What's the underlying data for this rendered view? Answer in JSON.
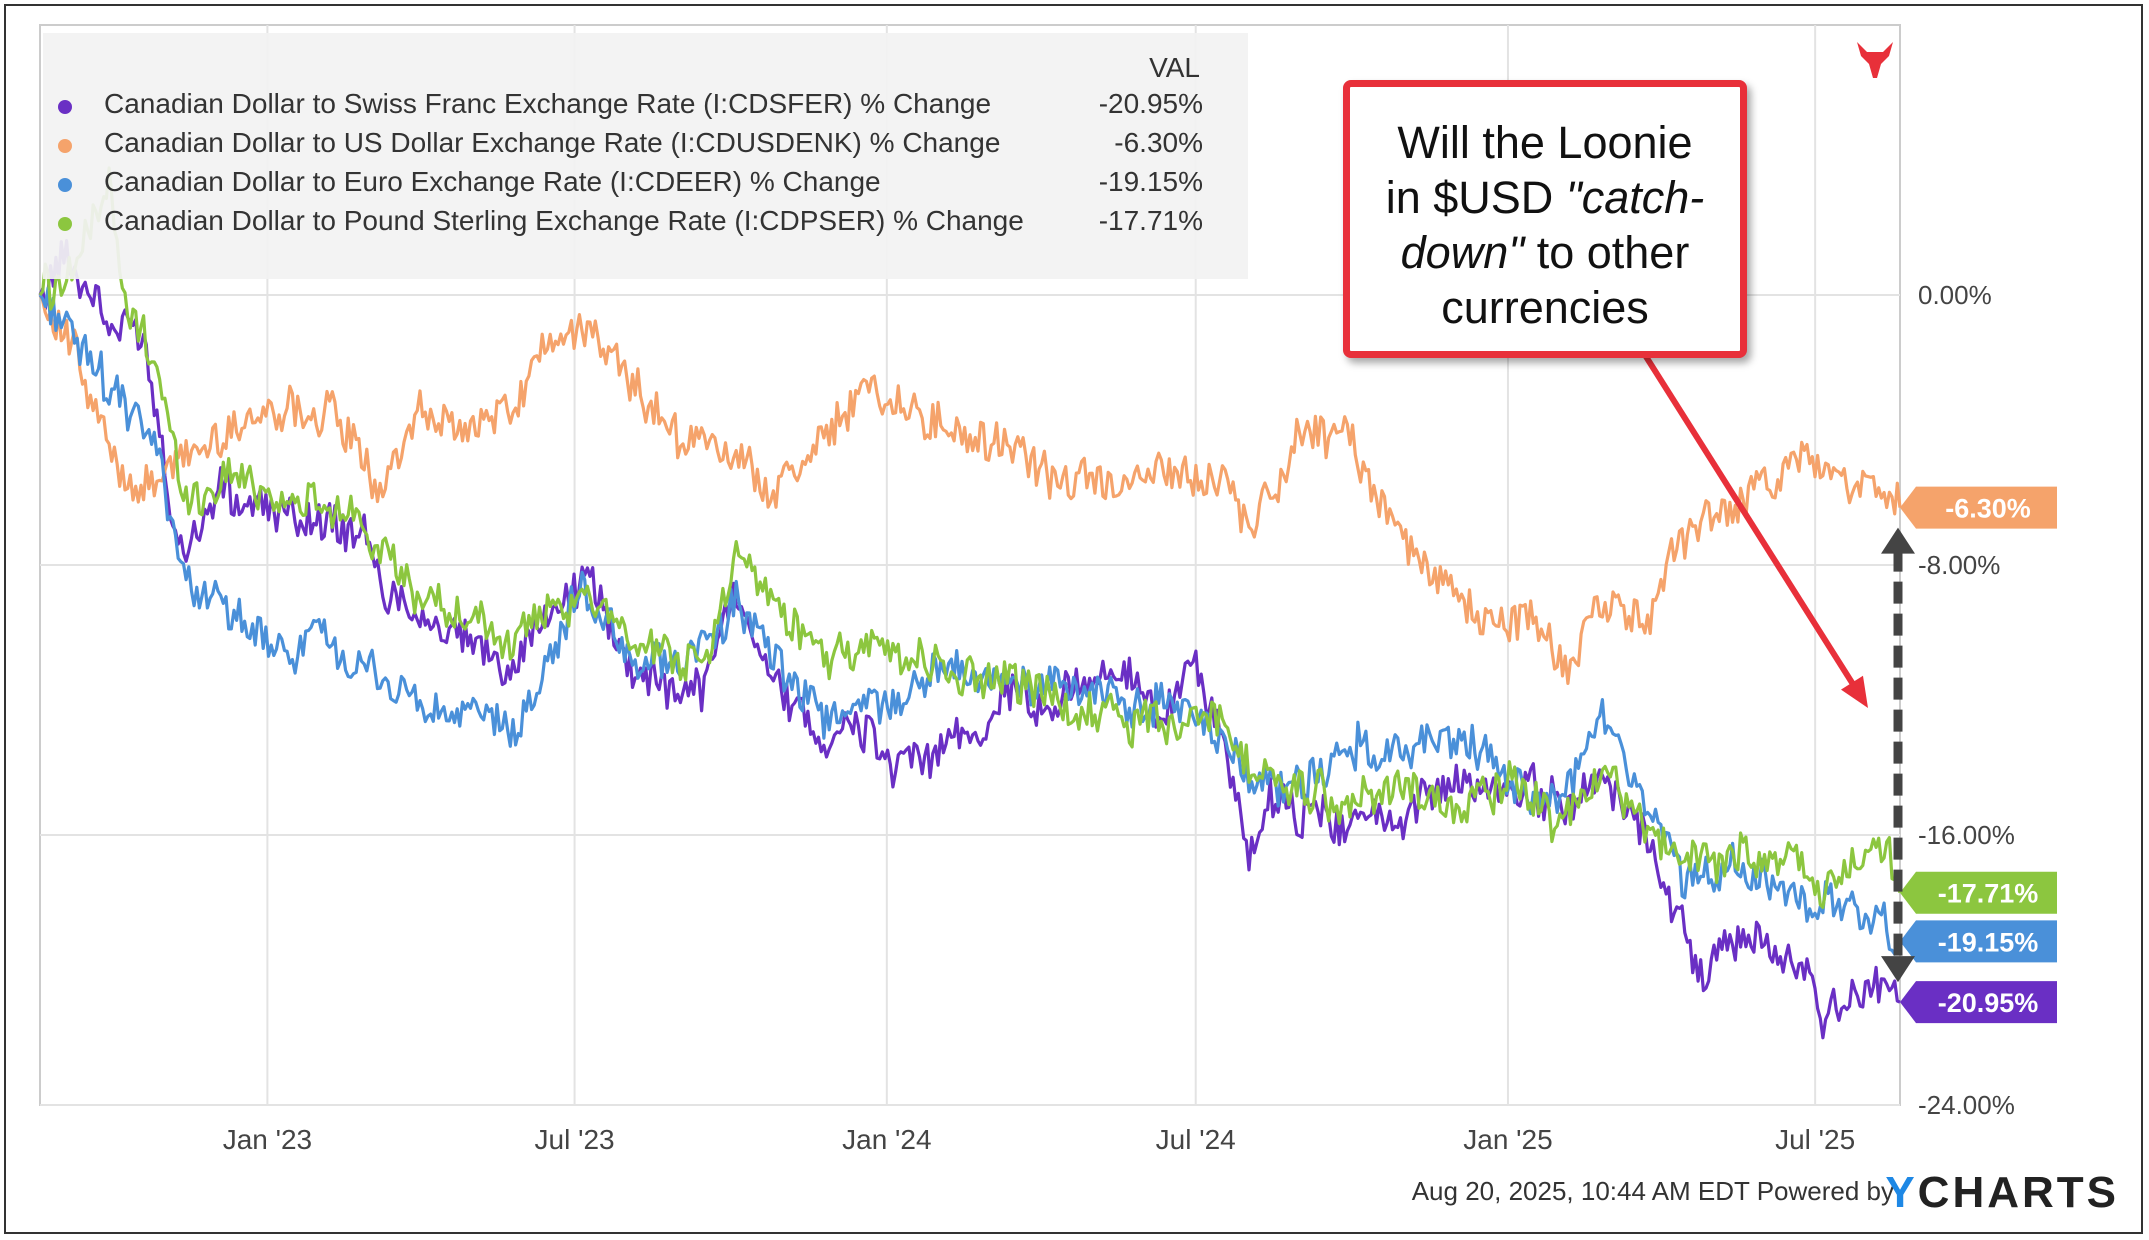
{
  "chart_data": {
    "type": "line",
    "legend_header": "VAL",
    "ylim": [
      -24,
      8
    ],
    "yticks": [
      0,
      -8,
      -16,
      -24
    ],
    "ytick_labels": [
      "0.00%",
      "-8.00%",
      "-16.00%",
      "-24.00%"
    ],
    "xlim": [
      "2022-08-20",
      "2025-08-20"
    ],
    "xticks": [
      "2023-01-01",
      "2023-07-01",
      "2024-01-01",
      "2024-07-01",
      "2025-01-01",
      "2025-07-01"
    ],
    "xtick_labels": [
      "Jan '23",
      "Jul '23",
      "Jan '24",
      "Jul '24",
      "Jan '25",
      "Jul '25"
    ],
    "grid": true,
    "legend_position": "top-left",
    "series": [
      {
        "name": "Canadian Dollar to Swiss Franc Exchange Rate (I:CDSFER) % Change",
        "value_label": "-20.95%",
        "color": "#6a2fc4",
        "points": [
          [
            "2022-08-20",
            0
          ],
          [
            "2022-09-05",
            1.3
          ],
          [
            "2022-09-25",
            -0.6
          ],
          [
            "2022-10-20",
            -1.2
          ],
          [
            "2022-11-10",
            -7.4
          ],
          [
            "2022-12-05",
            -5.8
          ],
          [
            "2022-12-25",
            -6.2
          ],
          [
            "2023-01-20",
            -6.4
          ],
          [
            "2023-02-25",
            -7.0
          ],
          [
            "2023-03-10",
            -8.6
          ],
          [
            "2023-04-05",
            -9.8
          ],
          [
            "2023-05-01",
            -10.4
          ],
          [
            "2023-05-25",
            -11.0
          ],
          [
            "2023-06-20",
            -9.2
          ],
          [
            "2023-07-10",
            -8.2
          ],
          [
            "2023-07-30",
            -10.6
          ],
          [
            "2023-08-20",
            -11.6
          ],
          [
            "2023-09-15",
            -11.6
          ],
          [
            "2023-10-05",
            -8.4
          ],
          [
            "2023-10-25",
            -11.2
          ],
          [
            "2023-11-25",
            -13.0
          ],
          [
            "2023-12-20",
            -12.8
          ],
          [
            "2024-01-05",
            -14.2
          ],
          [
            "2024-01-25",
            -13.6
          ],
          [
            "2024-02-20",
            -13.2
          ],
          [
            "2024-03-15",
            -11.6
          ],
          [
            "2024-04-05",
            -12.6
          ],
          [
            "2024-04-25",
            -11.4
          ],
          [
            "2024-05-20",
            -11.2
          ],
          [
            "2024-06-10",
            -12.6
          ],
          [
            "2024-06-30",
            -10.8
          ],
          [
            "2024-07-20",
            -13.8
          ],
          [
            "2024-08-05",
            -17.0
          ],
          [
            "2024-08-12",
            -14.6
          ],
          [
            "2024-09-10",
            -15.6
          ],
          [
            "2024-10-05",
            -15.4
          ],
          [
            "2024-10-25",
            -15.8
          ],
          [
            "2024-11-20",
            -14.6
          ],
          [
            "2024-12-20",
            -14.8
          ],
          [
            "2025-01-15",
            -14.6
          ],
          [
            "2025-02-05",
            -15.2
          ],
          [
            "2025-02-25",
            -14.2
          ],
          [
            "2025-03-25",
            -16.0
          ],
          [
            "2025-04-10",
            -18.2
          ],
          [
            "2025-04-25",
            -20.0
          ],
          [
            "2025-05-20",
            -19.0
          ],
          [
            "2025-06-20",
            -19.8
          ],
          [
            "2025-07-05",
            -21.2
          ],
          [
            "2025-07-25",
            -21.0
          ],
          [
            "2025-08-12",
            -20.5
          ],
          [
            "2025-08-20",
            -20.95
          ]
        ]
      },
      {
        "name": "Canadian Dollar to US Dollar Exchange Rate (I:CDUSDENK) % Change",
        "value_label": "-6.30%",
        "color": "#f5a36b",
        "points": [
          [
            "2022-08-20",
            0
          ],
          [
            "2022-09-10",
            -1.8
          ],
          [
            "2022-10-05",
            -5.4
          ],
          [
            "2022-10-25",
            -5.8
          ],
          [
            "2022-11-15",
            -4.6
          ],
          [
            "2022-12-15",
            -3.8
          ],
          [
            "2023-01-15",
            -3.2
          ],
          [
            "2023-02-10",
            -3.6
          ],
          [
            "2023-03-10",
            -5.8
          ],
          [
            "2023-04-01",
            -3.6
          ],
          [
            "2023-05-01",
            -4.0
          ],
          [
            "2023-05-25",
            -3.4
          ],
          [
            "2023-06-15",
            -1.6
          ],
          [
            "2023-07-10",
            -1.2
          ],
          [
            "2023-08-05",
            -2.6
          ],
          [
            "2023-08-30",
            -4.2
          ],
          [
            "2023-09-25",
            -4.6
          ],
          [
            "2023-10-25",
            -5.8
          ],
          [
            "2023-11-20",
            -4.4
          ],
          [
            "2023-12-20",
            -2.6
          ],
          [
            "2024-01-20",
            -3.6
          ],
          [
            "2024-02-20",
            -4.4
          ],
          [
            "2024-03-20",
            -4.6
          ],
          [
            "2024-04-15",
            -5.8
          ],
          [
            "2024-05-15",
            -5.4
          ],
          [
            "2024-06-15",
            -5.4
          ],
          [
            "2024-07-15",
            -5.6
          ],
          [
            "2024-08-05",
            -6.8
          ],
          [
            "2024-09-01",
            -4.2
          ],
          [
            "2024-09-25",
            -4.0
          ],
          [
            "2024-10-20",
            -6.4
          ],
          [
            "2024-11-20",
            -8.4
          ],
          [
            "2024-12-20",
            -9.8
          ],
          [
            "2025-01-20",
            -9.6
          ],
          [
            "2025-02-05",
            -11.2
          ],
          [
            "2025-02-25",
            -9.0
          ],
          [
            "2025-03-25",
            -9.4
          ],
          [
            "2025-04-10",
            -7.2
          ],
          [
            "2025-05-05",
            -6.4
          ],
          [
            "2025-05-25",
            -6.0
          ],
          [
            "2025-06-20",
            -4.8
          ],
          [
            "2025-07-05",
            -5.2
          ],
          [
            "2025-07-25",
            -5.4
          ],
          [
            "2025-08-10",
            -6.0
          ],
          [
            "2025-08-20",
            -6.3
          ]
        ]
      },
      {
        "name": "Canadian Dollar to Euro Exchange Rate (I:CDEER) % Change",
        "value_label": "-19.15%",
        "color": "#4a90d9",
        "points": [
          [
            "2022-08-20",
            0
          ],
          [
            "2022-09-10",
            -1.2
          ],
          [
            "2022-10-01",
            -3.0
          ],
          [
            "2022-10-25",
            -4.0
          ],
          [
            "2022-11-15",
            -8.4
          ],
          [
            "2022-12-10",
            -9.6
          ],
          [
            "2023-01-05",
            -10.6
          ],
          [
            "2023-02-01",
            -10.2
          ],
          [
            "2023-03-01",
            -11.2
          ],
          [
            "2023-04-01",
            -12.2
          ],
          [
            "2023-05-01",
            -12.4
          ],
          [
            "2023-05-25",
            -13.0
          ],
          [
            "2023-06-15",
            -10.8
          ],
          [
            "2023-07-05",
            -8.8
          ],
          [
            "2023-08-01",
            -10.6
          ],
          [
            "2023-09-01",
            -11.0
          ],
          [
            "2023-10-05",
            -9.2
          ],
          [
            "2023-11-01",
            -11.4
          ],
          [
            "2023-12-01",
            -12.6
          ],
          [
            "2024-01-01",
            -12.0
          ],
          [
            "2024-01-25",
            -11.4
          ],
          [
            "2024-03-01",
            -11.2
          ],
          [
            "2024-04-01",
            -11.6
          ],
          [
            "2024-05-01",
            -11.8
          ],
          [
            "2024-06-01",
            -12.2
          ],
          [
            "2024-07-01",
            -12.2
          ],
          [
            "2024-08-01",
            -14.2
          ],
          [
            "2024-09-01",
            -14.6
          ],
          [
            "2024-10-01",
            -13.4
          ],
          [
            "2024-11-01",
            -13.8
          ],
          [
            "2024-12-01",
            -13.0
          ],
          [
            "2025-01-01",
            -14.2
          ],
          [
            "2025-02-01",
            -15.4
          ],
          [
            "2025-02-25",
            -12.4
          ],
          [
            "2025-03-25",
            -15.0
          ],
          [
            "2025-04-15",
            -17.2
          ],
          [
            "2025-05-15",
            -16.8
          ],
          [
            "2025-06-15",
            -17.8
          ],
          [
            "2025-07-15",
            -18.2
          ],
          [
            "2025-08-10",
            -18.6
          ],
          [
            "2025-08-20",
            -19.15
          ]
        ]
      },
      {
        "name": "Canadian Dollar to Pound Sterling Exchange Rate (I:CDPSER) % Change",
        "value_label": "-17.71%",
        "color": "#8cc63f",
        "points": [
          [
            "2022-08-20",
            0
          ],
          [
            "2022-09-10",
            1.0
          ],
          [
            "2022-09-30",
            3.2
          ],
          [
            "2022-10-10",
            -0.6
          ],
          [
            "2022-10-25",
            -1.6
          ],
          [
            "2022-11-15",
            -6.0
          ],
          [
            "2022-12-15",
            -5.4
          ],
          [
            "2023-01-20",
            -6.0
          ],
          [
            "2023-02-25",
            -6.6
          ],
          [
            "2023-03-20",
            -8.4
          ],
          [
            "2023-04-20",
            -9.6
          ],
          [
            "2023-05-25",
            -10.2
          ],
          [
            "2023-06-20",
            -9.4
          ],
          [
            "2023-07-15",
            -9.0
          ],
          [
            "2023-08-10",
            -10.6
          ],
          [
            "2023-09-15",
            -10.8
          ],
          [
            "2023-10-05",
            -7.6
          ],
          [
            "2023-10-30",
            -9.2
          ],
          [
            "2023-11-25",
            -10.8
          ],
          [
            "2023-12-25",
            -10.6
          ],
          [
            "2024-01-25",
            -10.8
          ],
          [
            "2024-02-25",
            -11.6
          ],
          [
            "2024-03-20",
            -11.4
          ],
          [
            "2024-04-20",
            -12.2
          ],
          [
            "2024-05-20",
            -12.6
          ],
          [
            "2024-06-20",
            -12.8
          ],
          [
            "2024-07-10",
            -12.6
          ],
          [
            "2024-08-05",
            -14.0
          ],
          [
            "2024-09-01",
            -14.8
          ],
          [
            "2024-10-01",
            -15.0
          ],
          [
            "2024-11-01",
            -14.4
          ],
          [
            "2024-12-01",
            -15.2
          ],
          [
            "2025-01-01",
            -14.4
          ],
          [
            "2025-02-01",
            -15.8
          ],
          [
            "2025-03-01",
            -14.2
          ],
          [
            "2025-03-25",
            -15.8
          ],
          [
            "2025-04-15",
            -17.0
          ],
          [
            "2025-05-15",
            -16.6
          ],
          [
            "2025-06-15",
            -16.8
          ],
          [
            "2025-07-05",
            -17.6
          ],
          [
            "2025-07-25",
            -16.8
          ],
          [
            "2025-08-10",
            -16.2
          ],
          [
            "2025-08-20",
            -17.71
          ]
        ]
      }
    ]
  },
  "callout": {
    "line1": "Will the Loonie",
    "line2_plain": "in $USD ",
    "line2_italic": "\"catch-",
    "line3_italic": "down\"",
    "line3_plain": " to other",
    "line4": "currencies"
  },
  "footer": {
    "timestamp": "Aug 20, 2025, 10:44 AM EDT Powered by",
    "brand_y": "Y",
    "brand_rest": "CHARTS"
  },
  "colors": {
    "callout_border": "#e8303a",
    "arrow": "#e8303a",
    "gap_arrow": "#444444"
  }
}
